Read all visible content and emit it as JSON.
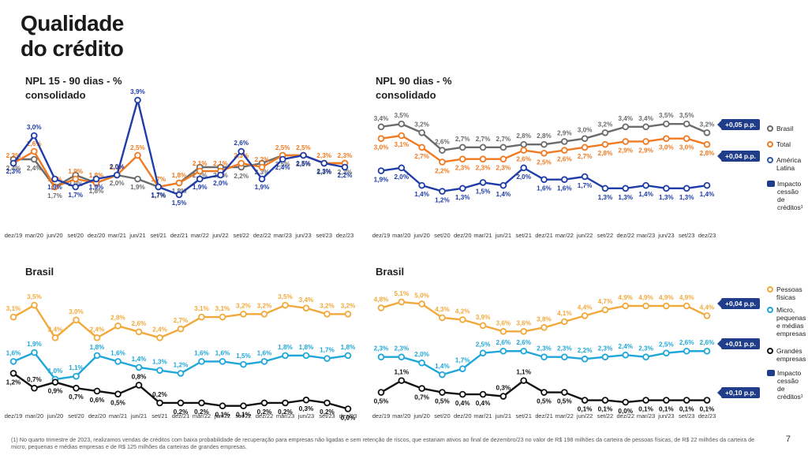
{
  "title": {
    "line1": "Qualidade",
    "line2": "do crédito"
  },
  "page_number": "7",
  "footnote": "(1) No quarto trimestre de 2023, realizamos vendas de créditos com baixa probabilidade de recuperação para empresas não ligadas e sem retenção de riscos, que estariam ativos ao final de dezembro/23 no valor de R$ 198 milhões da carteira de pessoas físicas, de R$ 22 milhões da carteira de micro, pequenas e médias empresas e de R$ 125 milhões da carteiras de grandes empresas.",
  "legend_top": {
    "items": [
      {
        "label": "Brasil",
        "color": "#6b6b6b"
      },
      {
        "label": "Total",
        "color": "#f07a22"
      },
      {
        "label": "América Latina",
        "color": "#2b5aa8"
      }
    ],
    "impact_label": "Impacto cessão de créditos¹"
  },
  "legend_bottom": {
    "items": [
      {
        "label": "Pessoas físicas",
        "color": "#f2a93b"
      },
      {
        "label": "Micro, pequenas e médias empresas",
        "color": "#1fa7d9"
      },
      {
        "label": "Grandes empresas",
        "color": "#111111"
      }
    ],
    "impact_label": "Impacto cessão de créditos¹"
  },
  "badges": {
    "npl90_brasil": "+0,05 p.p.",
    "npl90_total": "+0,04 p.p.",
    "br90_pf": "+0,04 p.p.",
    "br90_mpme": "+0,01 p.p.",
    "br90_ge": "+0,10 p.p."
  },
  "chart_data": [
    {
      "type": "line",
      "title": "NPL 15 - 90 dias - % consolidado",
      "title_line1": "NPL 15 - 90 dias - %",
      "title_line2": "consolidado",
      "categories": [
        "dez/19",
        "mar/20",
        "jun/20",
        "set/20",
        "dez/20",
        "mar/21",
        "jun/21",
        "set/21",
        "dez/21",
        "mar/22",
        "jun/22",
        "set/22",
        "dez/22",
        "mar/23",
        "jun/23",
        "set/23",
        "dez/23"
      ],
      "ylim": [
        1.0,
        4.2
      ],
      "series": [
        {
          "name": "Brasil",
          "color": "#6b6b6b",
          "values": [
            2.4,
            2.4,
            1.7,
            2.0,
            1.8,
            2.0,
            1.9,
            1.7,
            1.8,
            2.2,
            2.2,
            2.2,
            2.3,
            2.5,
            2.5,
            2.3,
            2.3
          ],
          "labels": [
            "2,4%",
            "2,4%",
            "1,7%",
            "2,0%",
            "1,8%",
            "2,0%",
            "1,9%",
            "1,7%",
            "1,8%",
            "2,2%",
            "2,2%",
            "2,2%",
            "2,3%",
            "2,5%",
            "2,5%",
            "2,3%",
            "2,3%"
          ]
        },
        {
          "name": "Total",
          "color": "#f07a22",
          "values": [
            2.3,
            2.6,
            1.7,
            1.9,
            1.8,
            2.0,
            2.5,
            1.7,
            1.8,
            2.1,
            2.1,
            2.3,
            2.2,
            2.5,
            2.5,
            2.3,
            2.3
          ],
          "labels": [
            "2,3%",
            "2,6%",
            "1,7%",
            "1,9%",
            "1,8%",
            "2,0%",
            "2,5%",
            "1,7%",
            "1,8%",
            "2,1%",
            "2,1%",
            "2,3%",
            "2,2%",
            "2,5%",
            "2,5%",
            "2,3%",
            "2,3%"
          ]
        },
        {
          "name": "América Latina",
          "color": "#1f3da8",
          "values": [
            2.3,
            3.0,
            1.9,
            1.7,
            1.9,
            2.0,
            3.9,
            1.7,
            1.5,
            1.9,
            2.0,
            2.6,
            1.9,
            2.4,
            2.5,
            2.3,
            2.2
          ],
          "labels": [
            "2,3%",
            "3,0%",
            "1,9%",
            "1,7%",
            "1,9%",
            "2,0%",
            "3,9%",
            "1,7%",
            "1,5%",
            "1,9%",
            "2,0%",
            "2,6%",
            "1,9%",
            "2,4%",
            "2,5%",
            "2,3%",
            "2,2%"
          ]
        }
      ]
    },
    {
      "type": "line",
      "title": "NPL 90 dias - % consolidado",
      "title_line1": "NPL 90 dias - %",
      "title_line2": "consolidado",
      "categories": [
        "dez/19",
        "mar/20",
        "jun/20",
        "set/20",
        "dez/20",
        "mar/21",
        "jun/21",
        "set/21",
        "dez/21",
        "mar/22",
        "jun/22",
        "set/22",
        "dez/22",
        "mar/23",
        "jun/23",
        "set/23",
        "dez/23"
      ],
      "ylim": [
        1.0,
        3.8
      ],
      "series": [
        {
          "name": "Brasil",
          "color": "#6b6b6b",
          "values": [
            3.4,
            3.5,
            3.2,
            2.6,
            2.7,
            2.7,
            2.7,
            2.8,
            2.8,
            2.9,
            3.0,
            3.2,
            3.4,
            3.4,
            3.5,
            3.5,
            3.2
          ],
          "labels": [
            "3,4%",
            "3,5%",
            "3,2%",
            "2,6%",
            "2,7%",
            "2,7%",
            "2,7%",
            "2,8%",
            "2,8%",
            "2,9%",
            "3,0%",
            "3,2%",
            "3,4%",
            "3,4%",
            "3,5%",
            "3,5%",
            "3,2%"
          ]
        },
        {
          "name": "Total",
          "color": "#f07a22",
          "values": [
            3.0,
            3.1,
            2.7,
            2.2,
            2.3,
            2.3,
            2.3,
            2.6,
            2.5,
            2.6,
            2.7,
            2.8,
            2.9,
            2.9,
            3.0,
            3.0,
            2.8
          ],
          "labels": [
            "3,0%",
            "3,1%",
            "2,7%",
            "2,2%",
            "2,3%",
            "2,3%",
            "2,3%",
            "2,6%",
            "2,5%",
            "2,6%",
            "2,7%",
            "2,8%",
            "2,9%",
            "2,9%",
            "3,0%",
            "3,0%",
            "2,8%"
          ]
        },
        {
          "name": "América Latina",
          "color": "#1f3da8",
          "values": [
            1.9,
            2.0,
            1.4,
            1.2,
            1.3,
            1.5,
            1.4,
            2.0,
            1.6,
            1.6,
            1.7,
            1.3,
            1.3,
            1.4,
            1.3,
            1.3,
            1.4
          ],
          "labels": [
            "1,9%",
            "2,0%",
            "1,4%",
            "1,2%",
            "1,3%",
            "1,5%",
            "1,4%",
            "2,0%",
            "1,6%",
            "1,6%",
            "1,7%",
            "1,3%",
            "1,3%",
            "1,4%",
            "1,3%",
            "1,3%",
            "1,4%"
          ]
        }
      ]
    },
    {
      "type": "line",
      "title": "Brasil",
      "title_line1": "Brasil",
      "categories": [
        "dez/19",
        "mar/20",
        "jun/20",
        "set/20",
        "dez/20",
        "mar/21",
        "jun/21",
        "set/21",
        "dez/21",
        "mar/22",
        "jun/22",
        "set/22",
        "dez/22",
        "mar/23",
        "jun/23",
        "set/23",
        "dez/23"
      ],
      "ylim": [
        -0.2,
        3.9
      ],
      "series": [
        {
          "name": "Pessoas físicas",
          "color": "#f2a93b",
          "values": [
            3.1,
            3.5,
            2.4,
            3.0,
            2.4,
            2.8,
            2.6,
            2.4,
            2.7,
            3.1,
            3.1,
            3.2,
            3.2,
            3.5,
            3.4,
            3.2,
            3.2
          ],
          "labels": [
            "3,1%",
            "3,5%",
            "2,4%",
            "3,0%",
            "2,4%",
            "2,8%",
            "2,6%",
            "2,4%",
            "2,7%",
            "3,1%",
            "3,1%",
            "3,2%",
            "3,2%",
            "3,5%",
            "3,4%",
            "3,2%",
            "3,2%"
          ]
        },
        {
          "name": "Micro, pequenas e médias empresas",
          "color": "#1fa7d9",
          "values": [
            1.6,
            1.9,
            1.0,
            1.1,
            1.8,
            1.6,
            1.4,
            1.3,
            1.2,
            1.6,
            1.6,
            1.5,
            1.6,
            1.8,
            1.8,
            1.7,
            1.8
          ],
          "labels": [
            "1,6%",
            "1,9%",
            "1,0%",
            "1,1%",
            "1,8%",
            "1,6%",
            "1,4%",
            "1,3%",
            "1,2%",
            "1,6%",
            "1,6%",
            "1,5%",
            "1,6%",
            "1,8%",
            "1,8%",
            "1,7%",
            "1,8%"
          ]
        },
        {
          "name": "Grandes empresas",
          "color": "#111111",
          "values": [
            1.2,
            0.7,
            0.9,
            0.7,
            0.6,
            0.5,
            0.8,
            0.2,
            0.2,
            0.2,
            0.1,
            0.1,
            0.2,
            0.2,
            0.3,
            0.2,
            0.0
          ],
          "labels": [
            "1,2%",
            "0,7%",
            "0,9%",
            "0,7%",
            "0,6%",
            "0,5%",
            "0,8%",
            "0,2%",
            "0,2%",
            "0,2%",
            "0,1%",
            "0,1%",
            "0,2%",
            "0,2%",
            "0,3%",
            "0,2%",
            "0,0%"
          ]
        }
      ]
    },
    {
      "type": "line",
      "title": "Brasil",
      "title_line1": "Brasil",
      "categories": [
        "dez/19",
        "mar/20",
        "jun/20",
        "set/20",
        "dez/20",
        "mar/21",
        "jun/21",
        "set/21",
        "dez/21",
        "mar/22",
        "jun/22",
        "set/22",
        "dez/22",
        "mar/23",
        "jun/23",
        "set/23",
        "dez/23"
      ],
      "ylim": [
        -0.2,
        5.5
      ],
      "series": [
        {
          "name": "Pessoas físicas",
          "color": "#f2a93b",
          "values": [
            4.8,
            5.1,
            5.0,
            4.3,
            4.2,
            3.9,
            3.6,
            3.6,
            3.8,
            4.1,
            4.4,
            4.7,
            4.9,
            4.9,
            4.9,
            4.9,
            4.4
          ],
          "labels": [
            "4,8%",
            "5,1%",
            "5,0%",
            "4,3%",
            "4,2%",
            "3,9%",
            "3,6%",
            "3,6%",
            "3,8%",
            "4,1%",
            "4,4%",
            "4,7%",
            "4,9%",
            "4,9%",
            "4,9%",
            "4,9%",
            "4,4%"
          ]
        },
        {
          "name": "Micro, pequenas e médias empresas",
          "color": "#1fa7d9",
          "values": [
            2.3,
            2.3,
            2.0,
            1.4,
            1.7,
            2.5,
            2.6,
            2.6,
            2.3,
            2.3,
            2.2,
            2.3,
            2.4,
            2.3,
            2.5,
            2.6,
            2.6
          ],
          "labels": [
            "2,3%",
            "2,3%",
            "2,0%",
            "1,4%",
            "1,7%",
            "2,5%",
            "2,6%",
            "2,6%",
            "2,3%",
            "2,3%",
            "2,2%",
            "2,3%",
            "2,4%",
            "2,3%",
            "2,5%",
            "2,6%",
            "2,6%"
          ]
        },
        {
          "name": "Grandes empresas",
          "color": "#111111",
          "values": [
            0.5,
            1.1,
            0.7,
            0.5,
            0.4,
            0.4,
            0.3,
            1.1,
            0.5,
            0.5,
            0.1,
            0.1,
            0.0,
            0.1,
            0.1,
            0.1,
            0.1
          ],
          "labels": [
            "0,5%",
            "1,1%",
            "0,7%",
            "0,5%",
            "0,4%",
            "0,4%",
            "0,3%",
            "1,1%",
            "0,5%",
            "0,5%",
            "0,1%",
            "0,1%",
            "0,0%",
            "0,1%",
            "0,1%",
            "0,1%",
            "0,1%"
          ]
        }
      ]
    }
  ]
}
